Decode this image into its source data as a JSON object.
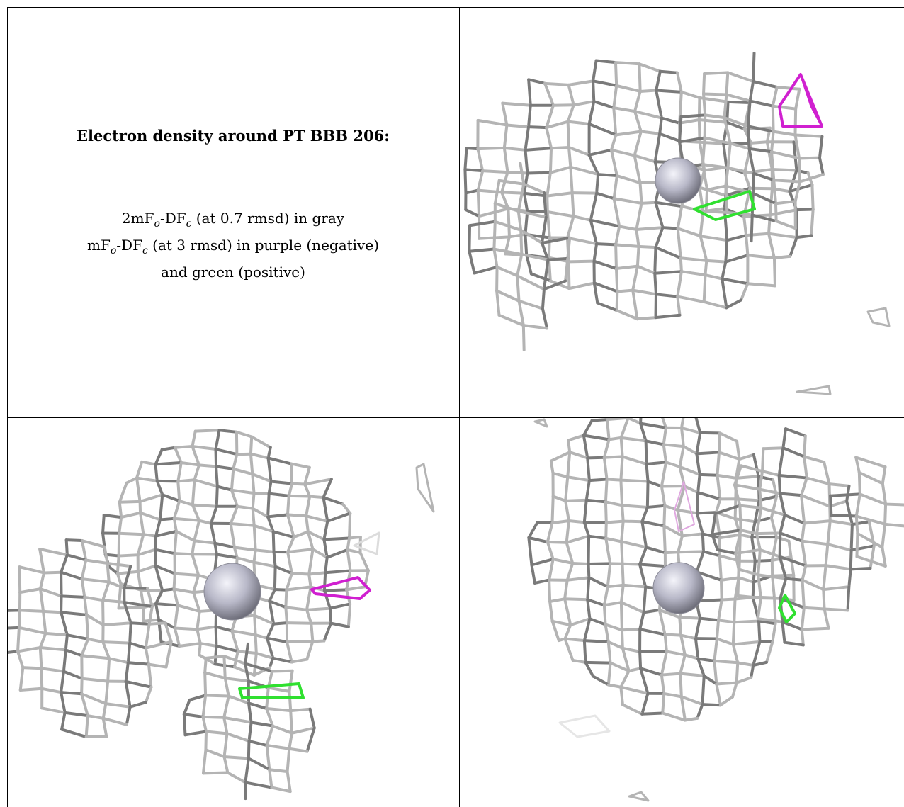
{
  "caption": {
    "title": "Electron density around PT BBB 206:",
    "line1": {
      "a": "2mF",
      "sub_o": "o",
      "b": "-DF",
      "sub_c": "c",
      "rest": " (at 0.7 rmsd) in gray"
    },
    "line2": {
      "a": "mF",
      "sub_o": "o",
      "b": "-DF",
      "sub_c": "c",
      "rest": " (at 3 rmsd) in purple (negative)"
    },
    "line3": "and green (positive)"
  },
  "colors": {
    "mesh_gray": "#b4b4b4",
    "mesh_dark": "#7a7a7a",
    "negative_purple": "#d020d0",
    "positive_green": "#30e030",
    "atom_sphere": "#b8b8c8"
  },
  "panels": [
    "top-right-view",
    "bottom-left-view",
    "bottom-right-view"
  ]
}
